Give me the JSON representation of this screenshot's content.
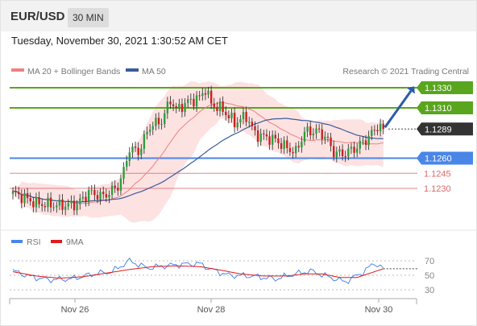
{
  "header": {
    "symbol": "EUR/USD",
    "timeframe": "30 MIN",
    "datetime": "Tuesday, November 30, 2021 1:30:52 AM CET",
    "copyright": "Research © 2021 Trading Central"
  },
  "colors": {
    "resistance": "#5aa51e",
    "current_price": "#333333",
    "support": "#4a86e8",
    "support_minor": "#e06666",
    "ma20": "#f08080",
    "bollinger_fill": "#fde2e2",
    "ma50": "#3b5b9a",
    "candle_up": "#2e9e3e",
    "candle_down": "#cc1f1f",
    "rsi": "#4a86e8",
    "rsi_ma": "#e31a1a",
    "forecast_arrow": "#2a5ca8"
  },
  "chart_data": [
    {
      "type": "candlestick",
      "title": "EUR/USD",
      "timeframe": "30 MIN",
      "legend": [
        {
          "name": "MA 20 + Bollinger Bands",
          "color": "#f08080"
        },
        {
          "name": "MA 50",
          "color": "#3b5b9a"
        }
      ],
      "legend_position": "top-left",
      "grid": false,
      "x_ticks": [
        "Nov 26",
        "Nov 28",
        "Nov 30"
      ],
      "ylim": [
        1.1195,
        1.1345
      ],
      "levels": [
        {
          "label": "1.1330",
          "value": 1.133,
          "kind": "resistance"
        },
        {
          "label": "1.1310",
          "value": 1.131,
          "kind": "resistance"
        },
        {
          "label": "1.1289",
          "value": 1.1289,
          "kind": "current"
        },
        {
          "label": "1.1260",
          "value": 1.126,
          "kind": "support"
        },
        {
          "label": "1.1245",
          "value": 1.1245,
          "kind": "support_minor"
        },
        {
          "label": "1.1230",
          "value": 1.123,
          "kind": "support_minor"
        }
      ],
      "forecast": {
        "from": 1.1289,
        "to": 1.133,
        "direction": "up"
      },
      "price_waypoints": [
        {
          "i": 0,
          "p": 1.1225
        },
        {
          "i": 3,
          "p": 1.1222
        },
        {
          "i": 8,
          "p": 1.1215
        },
        {
          "i": 16,
          "p": 1.1213
        },
        {
          "i": 22,
          "p": 1.1214
        },
        {
          "i": 26,
          "p": 1.1226
        },
        {
          "i": 31,
          "p": 1.1222
        },
        {
          "i": 36,
          "p": 1.1232
        },
        {
          "i": 38,
          "p": 1.1247
        },
        {
          "i": 40,
          "p": 1.127
        },
        {
          "i": 43,
          "p": 1.1266
        },
        {
          "i": 47,
          "p": 1.1292
        },
        {
          "i": 51,
          "p": 1.1297
        },
        {
          "i": 54,
          "p": 1.1318
        },
        {
          "i": 56,
          "p": 1.1308
        },
        {
          "i": 60,
          "p": 1.1316
        },
        {
          "i": 64,
          "p": 1.132
        },
        {
          "i": 66,
          "p": 1.1329
        },
        {
          "i": 68,
          "p": 1.1314
        },
        {
          "i": 72,
          "p": 1.1308
        },
        {
          "i": 76,
          "p": 1.1295
        },
        {
          "i": 80,
          "p": 1.1302
        },
        {
          "i": 83,
          "p": 1.1284
        },
        {
          "i": 90,
          "p": 1.1278
        },
        {
          "i": 94,
          "p": 1.127
        },
        {
          "i": 97,
          "p": 1.1266
        },
        {
          "i": 100,
          "p": 1.1286
        },
        {
          "i": 104,
          "p": 1.1287
        },
        {
          "i": 107,
          "p": 1.1282
        },
        {
          "i": 110,
          "p": 1.1266
        },
        {
          "i": 113,
          "p": 1.1264
        },
        {
          "i": 116,
          "p": 1.1268
        },
        {
          "i": 118,
          "p": 1.1271
        },
        {
          "i": 122,
          "p": 1.1281
        },
        {
          "i": 125,
          "p": 1.1292
        },
        {
          "i": 127,
          "p": 1.1289
        }
      ]
    },
    {
      "type": "line",
      "title": "",
      "legend": [
        {
          "name": "RSI",
          "color": "#4a86e8"
        },
        {
          "name": "9MA",
          "color": "#e31a1a"
        }
      ],
      "legend_position": "top-left",
      "ylim": [
        20,
        80
      ],
      "y_ticks": [
        70,
        50,
        30
      ],
      "rsi_waypoints": [
        {
          "i": 0,
          "v": 56
        },
        {
          "i": 6,
          "v": 48
        },
        {
          "i": 12,
          "v": 44
        },
        {
          "i": 20,
          "v": 45
        },
        {
          "i": 28,
          "v": 52
        },
        {
          "i": 34,
          "v": 55
        },
        {
          "i": 40,
          "v": 70
        },
        {
          "i": 46,
          "v": 60
        },
        {
          "i": 52,
          "v": 63
        },
        {
          "i": 58,
          "v": 65
        },
        {
          "i": 64,
          "v": 66
        },
        {
          "i": 68,
          "v": 58
        },
        {
          "i": 74,
          "v": 50
        },
        {
          "i": 82,
          "v": 49
        },
        {
          "i": 90,
          "v": 45
        },
        {
          "i": 96,
          "v": 51
        },
        {
          "i": 102,
          "v": 56
        },
        {
          "i": 108,
          "v": 48
        },
        {
          "i": 114,
          "v": 41
        },
        {
          "i": 120,
          "v": 54
        },
        {
          "i": 124,
          "v": 67
        },
        {
          "i": 127,
          "v": 59
        }
      ],
      "rsi_ma_waypoints": [
        {
          "i": 0,
          "v": 55
        },
        {
          "i": 8,
          "v": 49
        },
        {
          "i": 16,
          "v": 46
        },
        {
          "i": 24,
          "v": 48
        },
        {
          "i": 32,
          "v": 53
        },
        {
          "i": 40,
          "v": 58
        },
        {
          "i": 48,
          "v": 62
        },
        {
          "i": 56,
          "v": 63
        },
        {
          "i": 64,
          "v": 62
        },
        {
          "i": 70,
          "v": 58
        },
        {
          "i": 78,
          "v": 52
        },
        {
          "i": 86,
          "v": 49
        },
        {
          "i": 94,
          "v": 49
        },
        {
          "i": 100,
          "v": 52
        },
        {
          "i": 106,
          "v": 52
        },
        {
          "i": 112,
          "v": 47
        },
        {
          "i": 118,
          "v": 47
        },
        {
          "i": 124,
          "v": 55
        },
        {
          "i": 127,
          "v": 59
        }
      ]
    }
  ]
}
